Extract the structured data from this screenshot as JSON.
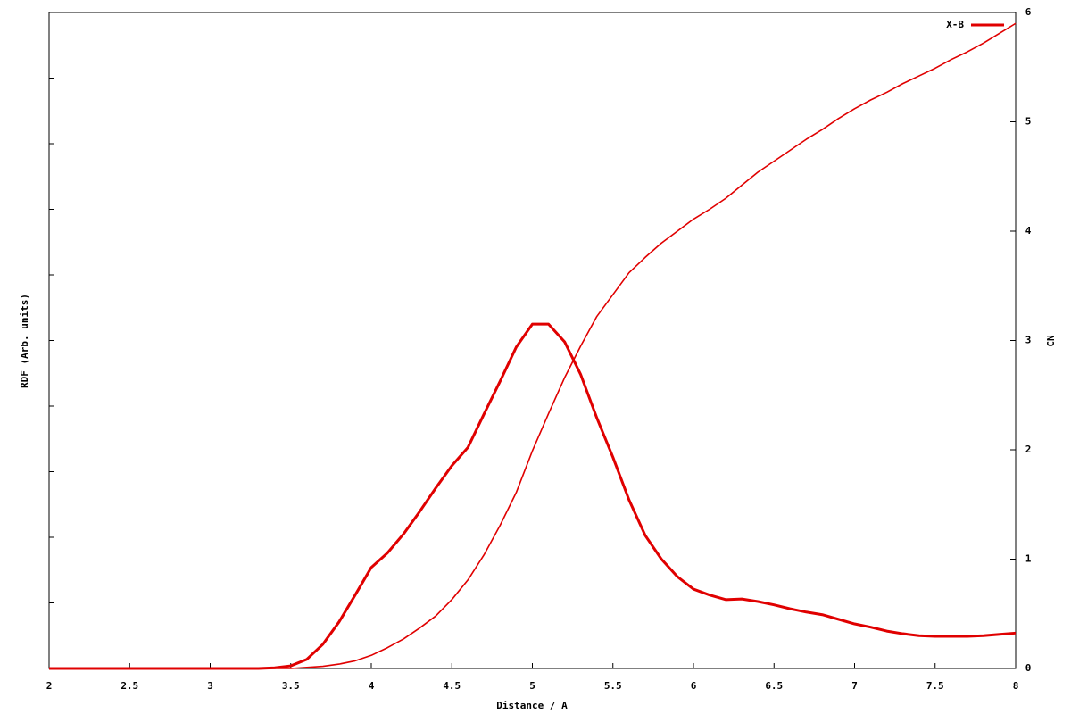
{
  "chart_data": {
    "type": "line",
    "xlabel": "Distance / A",
    "ylabel": "RDF (Arb. units)",
    "y2label": "CN",
    "x": [
      2.0,
      2.1,
      2.2,
      2.3,
      2.4,
      2.5,
      2.6,
      2.7,
      2.8,
      2.9,
      3.0,
      3.1,
      3.2,
      3.3,
      3.4,
      3.5,
      3.6,
      3.7,
      3.8,
      3.9,
      4.0,
      4.1,
      4.2,
      4.3,
      4.4,
      4.5,
      4.6,
      4.7,
      4.8,
      4.9,
      5.0,
      5.1,
      5.2,
      5.3,
      5.4,
      5.5,
      5.6,
      5.7,
      5.8,
      5.9,
      6.0,
      6.1,
      6.2,
      6.3,
      6.4,
      6.5,
      6.6,
      6.7,
      6.8,
      6.9,
      7.0,
      7.1,
      7.2,
      7.3,
      7.4,
      7.5,
      7.6,
      7.7,
      7.8,
      7.9,
      8.0
    ],
    "series": [
      {
        "name": "X-B",
        "color": "#e00000",
        "width": 3,
        "values": [
          0,
          0,
          0,
          0,
          0,
          0,
          0,
          0,
          0,
          0,
          0,
          0,
          0,
          0,
          0.01,
          0.04,
          0.14,
          0.37,
          0.71,
          1.12,
          1.54,
          1.76,
          2.05,
          2.39,
          2.75,
          3.09,
          3.37,
          3.88,
          4.38,
          4.9,
          5.25,
          5.25,
          4.98,
          4.48,
          3.82,
          3.22,
          2.57,
          2.03,
          1.67,
          1.4,
          1.21,
          1.12,
          1.05,
          1.06,
          1.02,
          0.97,
          0.91,
          0.86,
          0.82,
          0.75,
          0.68,
          0.63,
          0.57,
          0.53,
          0.5,
          0.49,
          0.49,
          0.49,
          0.5,
          0.52,
          0.54
        ]
      },
      {
        "color": "#e00000",
        "width": 1.6,
        "axis": "y2",
        "values": [
          0,
          0,
          0,
          0,
          0,
          0,
          0,
          0,
          0,
          0,
          0,
          0,
          0,
          0,
          0,
          0,
          0.01,
          0.02,
          0.04,
          0.07,
          0.12,
          0.19,
          0.27,
          0.37,
          0.48,
          0.63,
          0.81,
          1.04,
          1.31,
          1.61,
          1.99,
          2.33,
          2.66,
          2.95,
          3.22,
          3.42,
          3.62,
          3.76,
          3.89,
          4.0,
          4.11,
          4.2,
          4.3,
          4.42,
          4.54,
          4.64,
          4.74,
          4.84,
          4.93,
          5.03,
          5.12,
          5.2,
          5.27,
          5.35,
          5.42,
          5.49,
          5.57,
          5.64,
          5.72,
          5.81,
          5.9
        ]
      }
    ],
    "xlim": [
      2,
      8
    ],
    "xticks": [
      2,
      2.5,
      3,
      3.5,
      4,
      4.5,
      5,
      5.5,
      6,
      6.5,
      7,
      7.5,
      8
    ],
    "ylim": [
      0,
      10
    ],
    "yticks": [
      0,
      1,
      2,
      3,
      4,
      5,
      6,
      7,
      8,
      9,
      10
    ],
    "ytick_labels": false,
    "y2lim": [
      0,
      6
    ],
    "y2ticks": [
      0,
      1,
      2,
      3,
      4,
      5,
      6
    ],
    "legend": "top-right",
    "grid": false
  }
}
